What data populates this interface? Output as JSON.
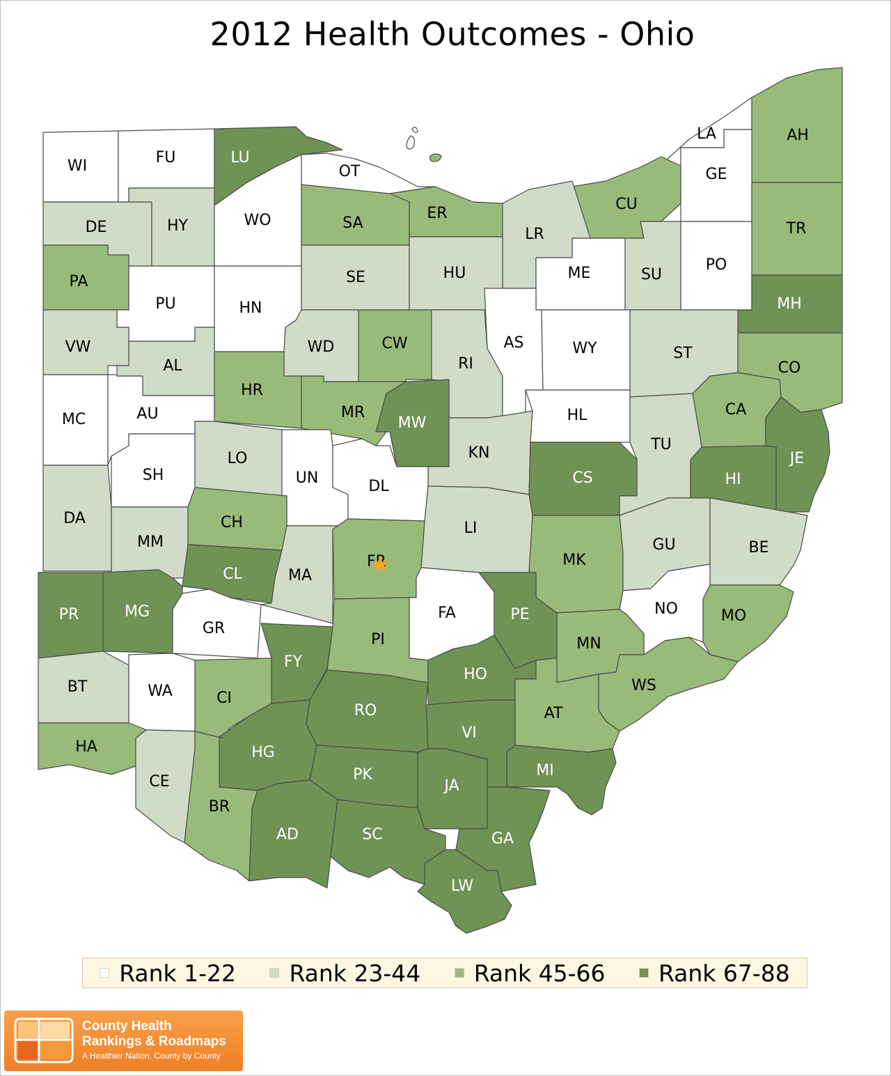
{
  "title": "2012 Health Outcomes - Ohio",
  "legend": [
    {
      "label": "Rank 1-22",
      "color": "#ffffff"
    },
    {
      "label": "Rank 23-44",
      "color": "#d0dcc8"
    },
    {
      "label": "Rank 45-66",
      "color": "#98bb7a"
    },
    {
      "label": "Rank 67-88",
      "color": "#6e9355"
    }
  ],
  "text_colors": [
    "#000000",
    "#000000",
    "#000000",
    "#ffffff"
  ],
  "counties": [
    {
      "code": "WI",
      "rank_group": 0
    },
    {
      "code": "FU",
      "rank_group": 0
    },
    {
      "code": "LU",
      "rank_group": 3
    },
    {
      "code": "OT",
      "rank_group": 0
    },
    {
      "code": "LA",
      "rank_group": 0
    },
    {
      "code": "AH",
      "rank_group": 2
    },
    {
      "code": "GE",
      "rank_group": 0
    },
    {
      "code": "DE",
      "rank_group": 1
    },
    {
      "code": "HY",
      "rank_group": 1
    },
    {
      "code": "WO",
      "rank_group": 0
    },
    {
      "code": "SA",
      "rank_group": 2
    },
    {
      "code": "ER",
      "rank_group": 2
    },
    {
      "code": "CU",
      "rank_group": 2
    },
    {
      "code": "LR",
      "rank_group": 1
    },
    {
      "code": "TR",
      "rank_group": 2
    },
    {
      "code": "PA",
      "rank_group": 2
    },
    {
      "code": "PU",
      "rank_group": 0
    },
    {
      "code": "HN",
      "rank_group": 0
    },
    {
      "code": "SE",
      "rank_group": 1
    },
    {
      "code": "HU",
      "rank_group": 1
    },
    {
      "code": "ME",
      "rank_group": 0
    },
    {
      "code": "SU",
      "rank_group": 1
    },
    {
      "code": "PO",
      "rank_group": 0
    },
    {
      "code": "MH",
      "rank_group": 3
    },
    {
      "code": "VW",
      "rank_group": 1
    },
    {
      "code": "AL",
      "rank_group": 1
    },
    {
      "code": "WD",
      "rank_group": 1
    },
    {
      "code": "CW",
      "rank_group": 2
    },
    {
      "code": "RI",
      "rank_group": 1
    },
    {
      "code": "AS",
      "rank_group": 0
    },
    {
      "code": "WY",
      "rank_group": 0
    },
    {
      "code": "ST",
      "rank_group": 1
    },
    {
      "code": "CO",
      "rank_group": 2
    },
    {
      "code": "MC",
      "rank_group": 0
    },
    {
      "code": "AU",
      "rank_group": 0
    },
    {
      "code": "HR",
      "rank_group": 2
    },
    {
      "code": "MR",
      "rank_group": 2
    },
    {
      "code": "MW",
      "rank_group": 3
    },
    {
      "code": "KN",
      "rank_group": 1
    },
    {
      "code": "HL",
      "rank_group": 0
    },
    {
      "code": "CA",
      "rank_group": 2
    },
    {
      "code": "JE",
      "rank_group": 3
    },
    {
      "code": "SH",
      "rank_group": 0
    },
    {
      "code": "LO",
      "rank_group": 1
    },
    {
      "code": "UN",
      "rank_group": 0
    },
    {
      "code": "DL",
      "rank_group": 0
    },
    {
      "code": "CS",
      "rank_group": 3
    },
    {
      "code": "TU",
      "rank_group": 1
    },
    {
      "code": "HI",
      "rank_group": 3
    },
    {
      "code": "DA",
      "rank_group": 1
    },
    {
      "code": "MM",
      "rank_group": 1
    },
    {
      "code": "CH",
      "rank_group": 2
    },
    {
      "code": "LI",
      "rank_group": 1
    },
    {
      "code": "GU",
      "rank_group": 1
    },
    {
      "code": "BE",
      "rank_group": 1
    },
    {
      "code": "CL",
      "rank_group": 3
    },
    {
      "code": "MA",
      "rank_group": 1
    },
    {
      "code": "FR",
      "rank_group": 2
    },
    {
      "code": "MK",
      "rank_group": 2
    },
    {
      "code": "PR",
      "rank_group": 3
    },
    {
      "code": "MG",
      "rank_group": 3
    },
    {
      "code": "GR",
      "rank_group": 0
    },
    {
      "code": "FA",
      "rank_group": 0
    },
    {
      "code": "PE",
      "rank_group": 3
    },
    {
      "code": "NO",
      "rank_group": 0
    },
    {
      "code": "MO",
      "rank_group": 2
    },
    {
      "code": "FY",
      "rank_group": 3
    },
    {
      "code": "PI",
      "rank_group": 2
    },
    {
      "code": "MN",
      "rank_group": 2
    },
    {
      "code": "HO",
      "rank_group": 3
    },
    {
      "code": "BT",
      "rank_group": 1
    },
    {
      "code": "WA",
      "rank_group": 0
    },
    {
      "code": "CI",
      "rank_group": 2
    },
    {
      "code": "WS",
      "rank_group": 2
    },
    {
      "code": "RO",
      "rank_group": 3
    },
    {
      "code": "AT",
      "rank_group": 2
    },
    {
      "code": "HA",
      "rank_group": 2
    },
    {
      "code": "HG",
      "rank_group": 3
    },
    {
      "code": "VI",
      "rank_group": 3
    },
    {
      "code": "CE",
      "rank_group": 1
    },
    {
      "code": "PK",
      "rank_group": 3
    },
    {
      "code": "MI",
      "rank_group": 3
    },
    {
      "code": "JA",
      "rank_group": 3
    },
    {
      "code": "BR",
      "rank_group": 2
    },
    {
      "code": "AD",
      "rank_group": 3
    },
    {
      "code": "SC",
      "rank_group": 3
    },
    {
      "code": "GA",
      "rank_group": 3
    },
    {
      "code": "LW",
      "rank_group": 3
    }
  ],
  "marker": {
    "county": "FR",
    "icon": "star-icon",
    "color": "#f5a623"
  },
  "logo": {
    "line1": "County Health",
    "line2": "Rankings & Roadmaps",
    "tagline": "A Healthier Nation, County by County"
  }
}
